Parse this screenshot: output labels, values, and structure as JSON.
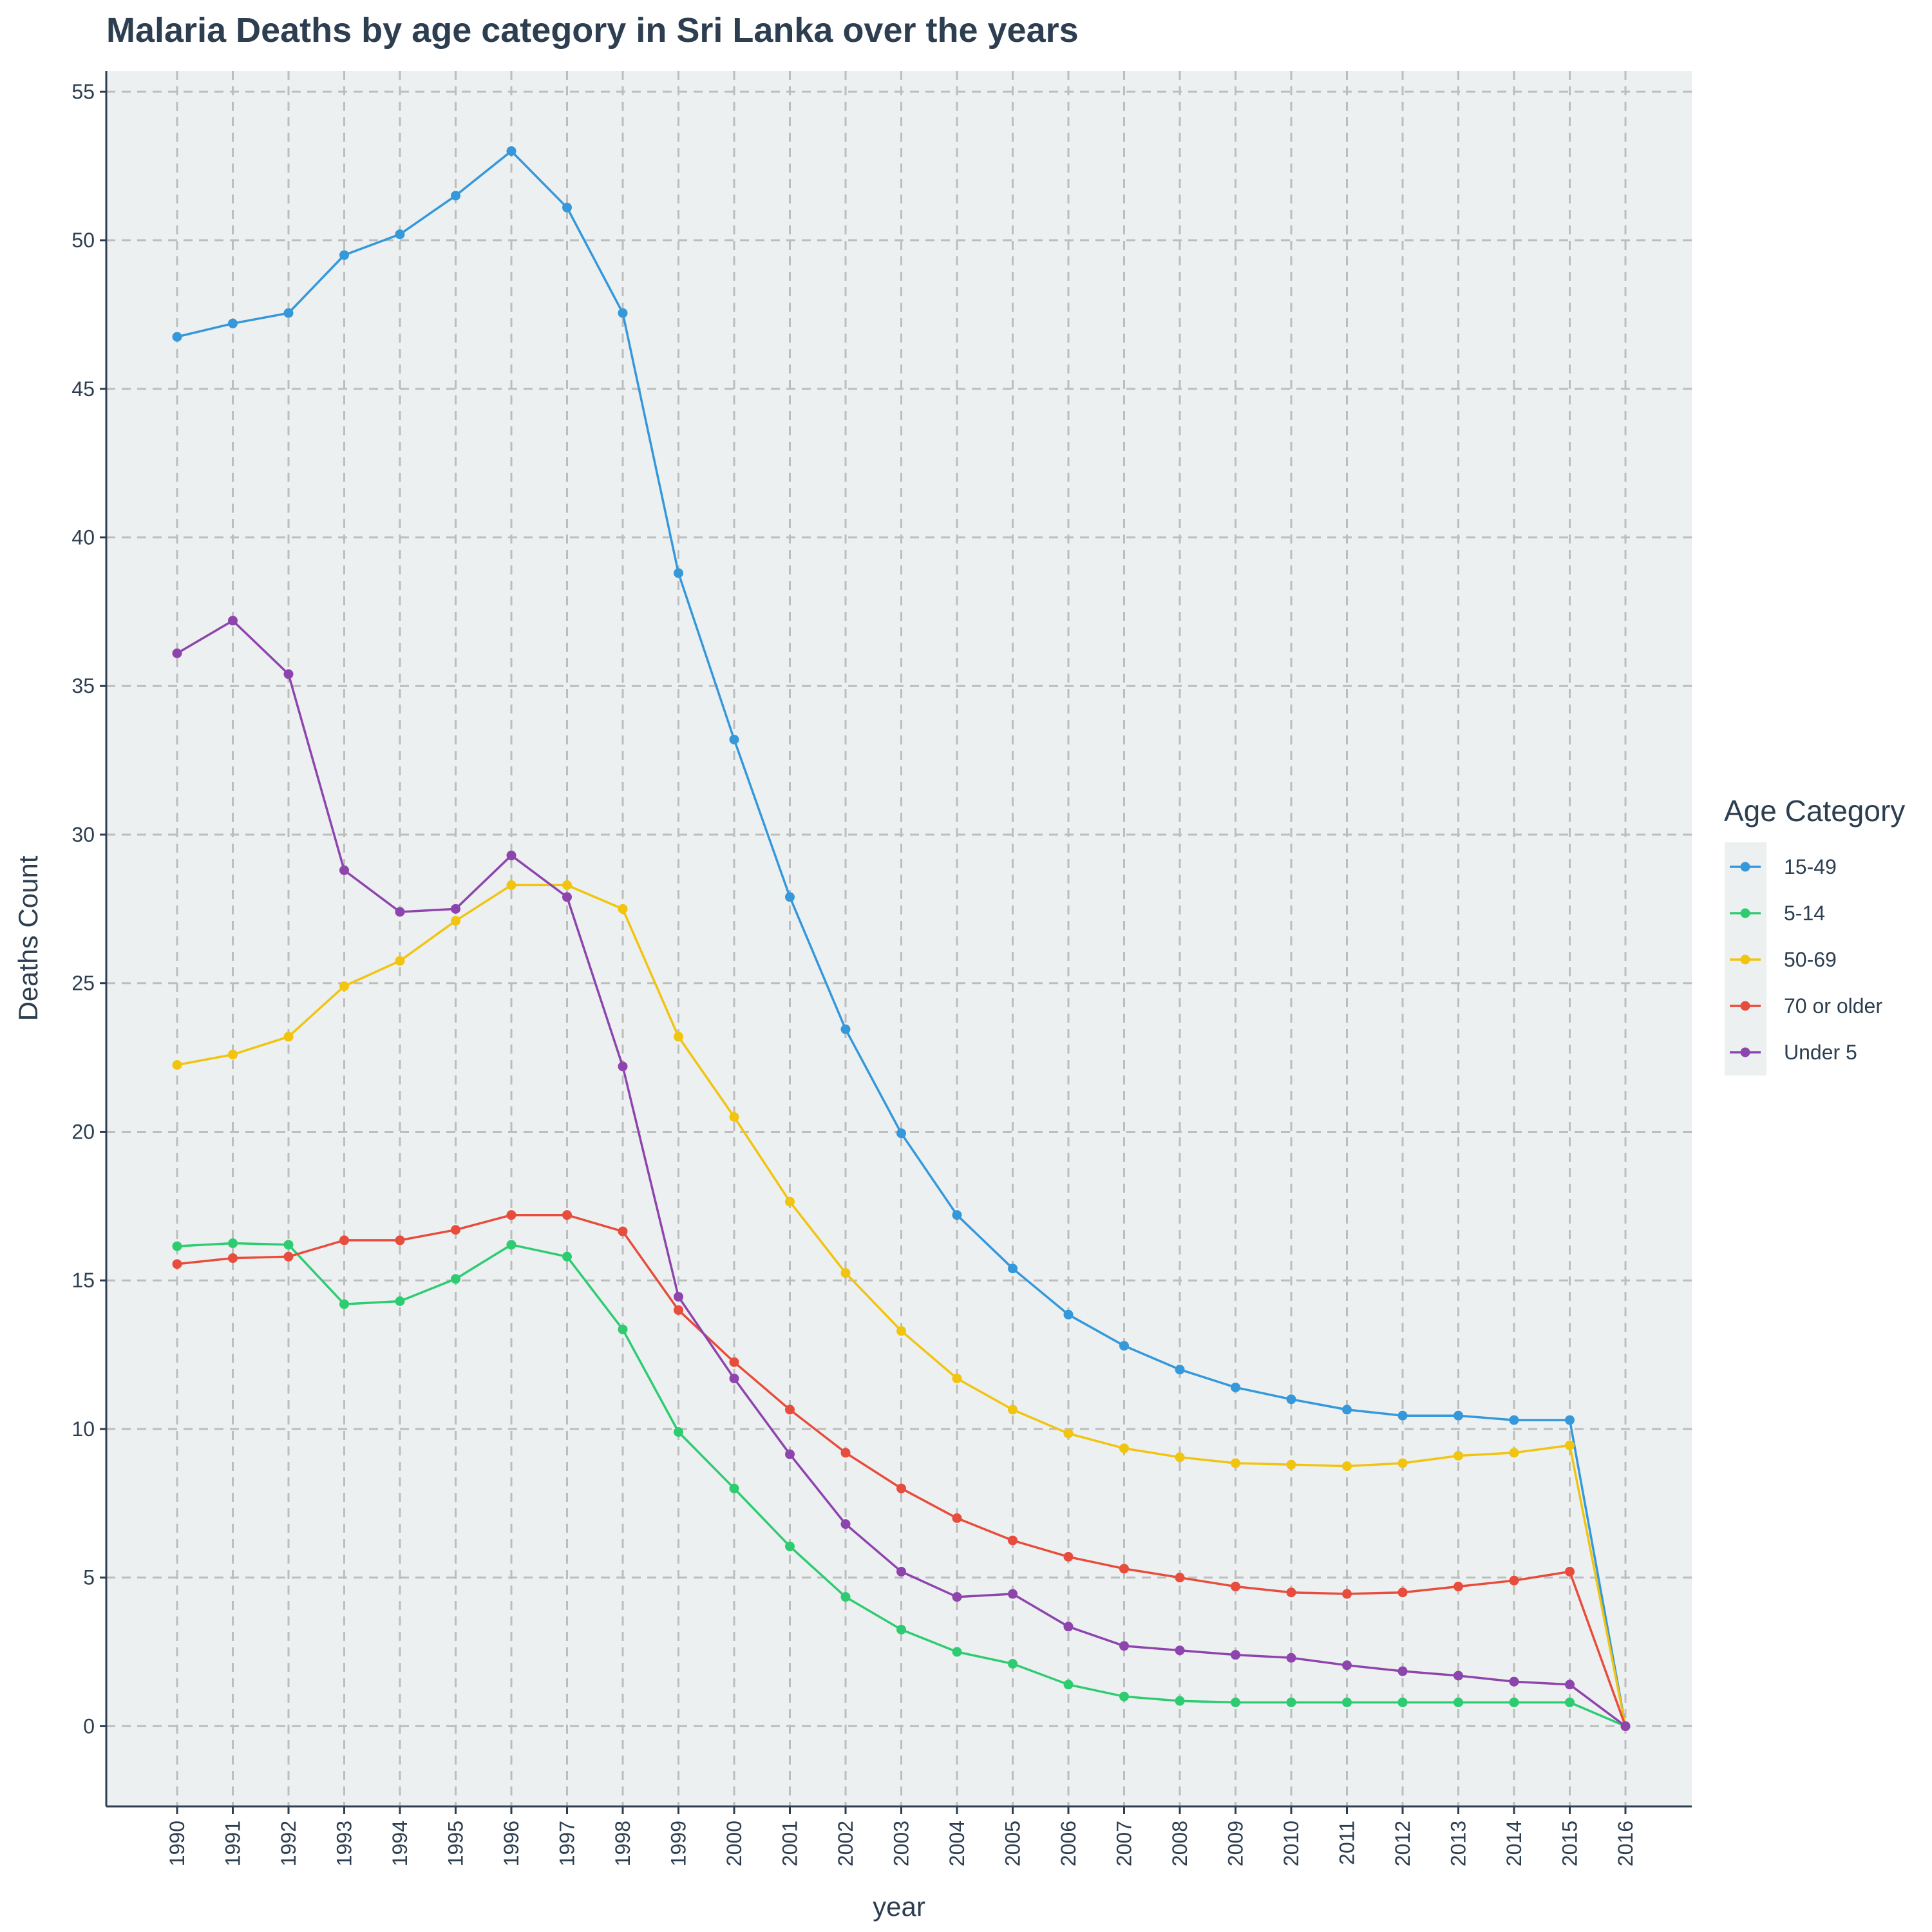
{
  "chart_data": {
    "type": "line",
    "title": "Malaria Deaths by age category in Sri Lanka over the years",
    "xlabel": "year",
    "ylabel": "Deaths Count",
    "legend_title": "Age Category",
    "legend_position": "right",
    "grid": true,
    "ylim": [
      -2.7,
      55.7
    ],
    "yticks": [
      0,
      5,
      10,
      15,
      20,
      25,
      30,
      35,
      40,
      45,
      50,
      55
    ],
    "x": [
      1990,
      1991,
      1992,
      1993,
      1994,
      1995,
      1996,
      1997,
      1998,
      1999,
      2000,
      2001,
      2002,
      2003,
      2004,
      2005,
      2006,
      2007,
      2008,
      2009,
      2010,
      2011,
      2012,
      2013,
      2014,
      2015,
      2016
    ],
    "series": [
      {
        "name": "15-49",
        "color": "#3498db",
        "values": [
          46.75,
          47.2,
          47.55,
          49.5,
          50.2,
          51.5,
          53.0,
          51.1,
          47.55,
          38.8,
          33.2,
          27.9,
          23.45,
          19.95,
          17.2,
          15.4,
          13.85,
          12.8,
          12.0,
          11.4,
          11.0,
          10.65,
          10.45,
          10.45,
          10.3,
          10.3,
          0
        ]
      },
      {
        "name": "5-14",
        "color": "#2ecc71",
        "values": [
          16.15,
          16.25,
          16.2,
          14.2,
          14.3,
          15.05,
          16.2,
          15.8,
          13.35,
          9.9,
          8.0,
          6.05,
          4.35,
          3.25,
          2.5,
          2.1,
          1.4,
          1.0,
          0.85,
          0.8,
          0.8,
          0.8,
          0.8,
          0.8,
          0.8,
          0.8,
          0
        ]
      },
      {
        "name": "50-69",
        "color": "#f1c40f",
        "values": [
          22.25,
          22.6,
          23.2,
          24.9,
          25.75,
          27.1,
          28.3,
          28.3,
          27.5,
          23.2,
          20.5,
          17.65,
          15.25,
          13.3,
          11.7,
          10.65,
          9.85,
          9.35,
          9.05,
          8.85,
          8.8,
          8.75,
          8.85,
          9.1,
          9.2,
          9.45,
          0
        ]
      },
      {
        "name": "70 or older",
        "color": "#e74c3c",
        "values": [
          15.55,
          15.75,
          15.8,
          16.35,
          16.35,
          16.7,
          17.2,
          17.2,
          16.65,
          14.0,
          12.25,
          10.65,
          9.2,
          8.0,
          7.0,
          6.25,
          5.7,
          5.3,
          5.0,
          4.7,
          4.5,
          4.45,
          4.5,
          4.7,
          4.9,
          5.2,
          0
        ]
      },
      {
        "name": "Under 5",
        "color": "#8e44ad",
        "values": [
          36.1,
          37.2,
          35.4,
          28.8,
          27.4,
          27.5,
          29.3,
          27.9,
          22.2,
          14.45,
          11.7,
          9.15,
          6.8,
          5.2,
          4.35,
          4.45,
          3.35,
          2.7,
          2.55,
          2.4,
          2.3,
          2.05,
          1.85,
          1.7,
          1.5,
          1.4,
          0
        ]
      }
    ]
  }
}
